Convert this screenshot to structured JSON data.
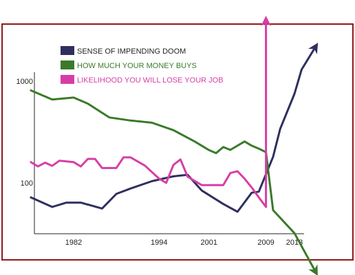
{
  "chart_data": {
    "type": "line",
    "y_scale": "log",
    "x_ticks": [
      "1982",
      "1994",
      "2001",
      "2009",
      "2013"
    ],
    "y_ticks": [
      "1000",
      "100"
    ],
    "grid": false,
    "legend_position": "top-left",
    "series": [
      {
        "name": "SENSE OF IMPENDING DOOM",
        "color": "#2f2f5f",
        "arrow": "up-right",
        "points": [
          [
            "1976",
            72
          ],
          [
            "1979",
            58
          ],
          [
            "1981",
            64
          ],
          [
            "1983",
            64
          ],
          [
            "1986",
            56
          ],
          [
            "1988",
            78
          ],
          [
            "1990",
            88
          ],
          [
            "1993",
            104
          ],
          [
            "1996",
            116
          ],
          [
            "1998",
            120
          ],
          [
            "2000",
            84
          ],
          [
            "2003",
            62
          ],
          [
            "2005",
            52
          ],
          [
            "2007",
            80
          ],
          [
            "2008",
            82
          ],
          [
            "2010",
            180
          ],
          [
            "2011",
            340
          ],
          [
            "2013",
            750
          ],
          [
            "2014",
            1300
          ],
          [
            "2016",
            2200
          ]
        ]
      },
      {
        "name": "HOW MUCH YOUR MONEY BUYS",
        "color": "#3a7a2a",
        "arrow": "down-right",
        "points": [
          [
            "1976",
            810
          ],
          [
            "1979",
            660
          ],
          [
            "1982",
            690
          ],
          [
            "1984",
            600
          ],
          [
            "1987",
            440
          ],
          [
            "1990",
            410
          ],
          [
            "1993",
            390
          ],
          [
            "1996",
            330
          ],
          [
            "1999",
            255
          ],
          [
            "2001",
            210
          ],
          [
            "2002",
            196
          ],
          [
            "2003",
            225
          ],
          [
            "2004",
            211
          ],
          [
            "2006",
            255
          ],
          [
            "2007",
            232
          ],
          [
            "2008",
            217
          ],
          [
            "2009",
            200
          ],
          [
            "2010",
            54
          ],
          [
            "2013",
            32
          ],
          [
            "2016",
            8
          ]
        ]
      },
      {
        "name": "LIKELIHOOD YOU WILL LOSE YOUR JOB",
        "color": "#d63ea6",
        "arrow": "up",
        "points": [
          [
            "1976",
            160
          ],
          [
            "1977",
            145
          ],
          [
            "1978",
            158
          ],
          [
            "1979",
            147
          ],
          [
            "1980",
            165
          ],
          [
            "1982",
            160
          ],
          [
            "1983",
            145
          ],
          [
            "1984",
            172
          ],
          [
            "1985",
            172
          ],
          [
            "1986",
            140
          ],
          [
            "1988",
            140
          ],
          [
            "1989",
            178
          ],
          [
            "1990",
            178
          ],
          [
            "1992",
            148
          ],
          [
            "1994",
            110
          ],
          [
            "1995",
            100
          ],
          [
            "1996",
            150
          ],
          [
            "1997",
            170
          ],
          [
            "1998",
            115
          ],
          [
            "2000",
            95
          ],
          [
            "2003",
            95
          ],
          [
            "2004",
            125
          ],
          [
            "2005",
            130
          ],
          [
            "2006",
            110
          ],
          [
            "2007",
            90
          ],
          [
            "2008",
            72
          ],
          [
            "2009",
            58
          ],
          [
            "2009",
            4000
          ]
        ]
      }
    ]
  }
}
